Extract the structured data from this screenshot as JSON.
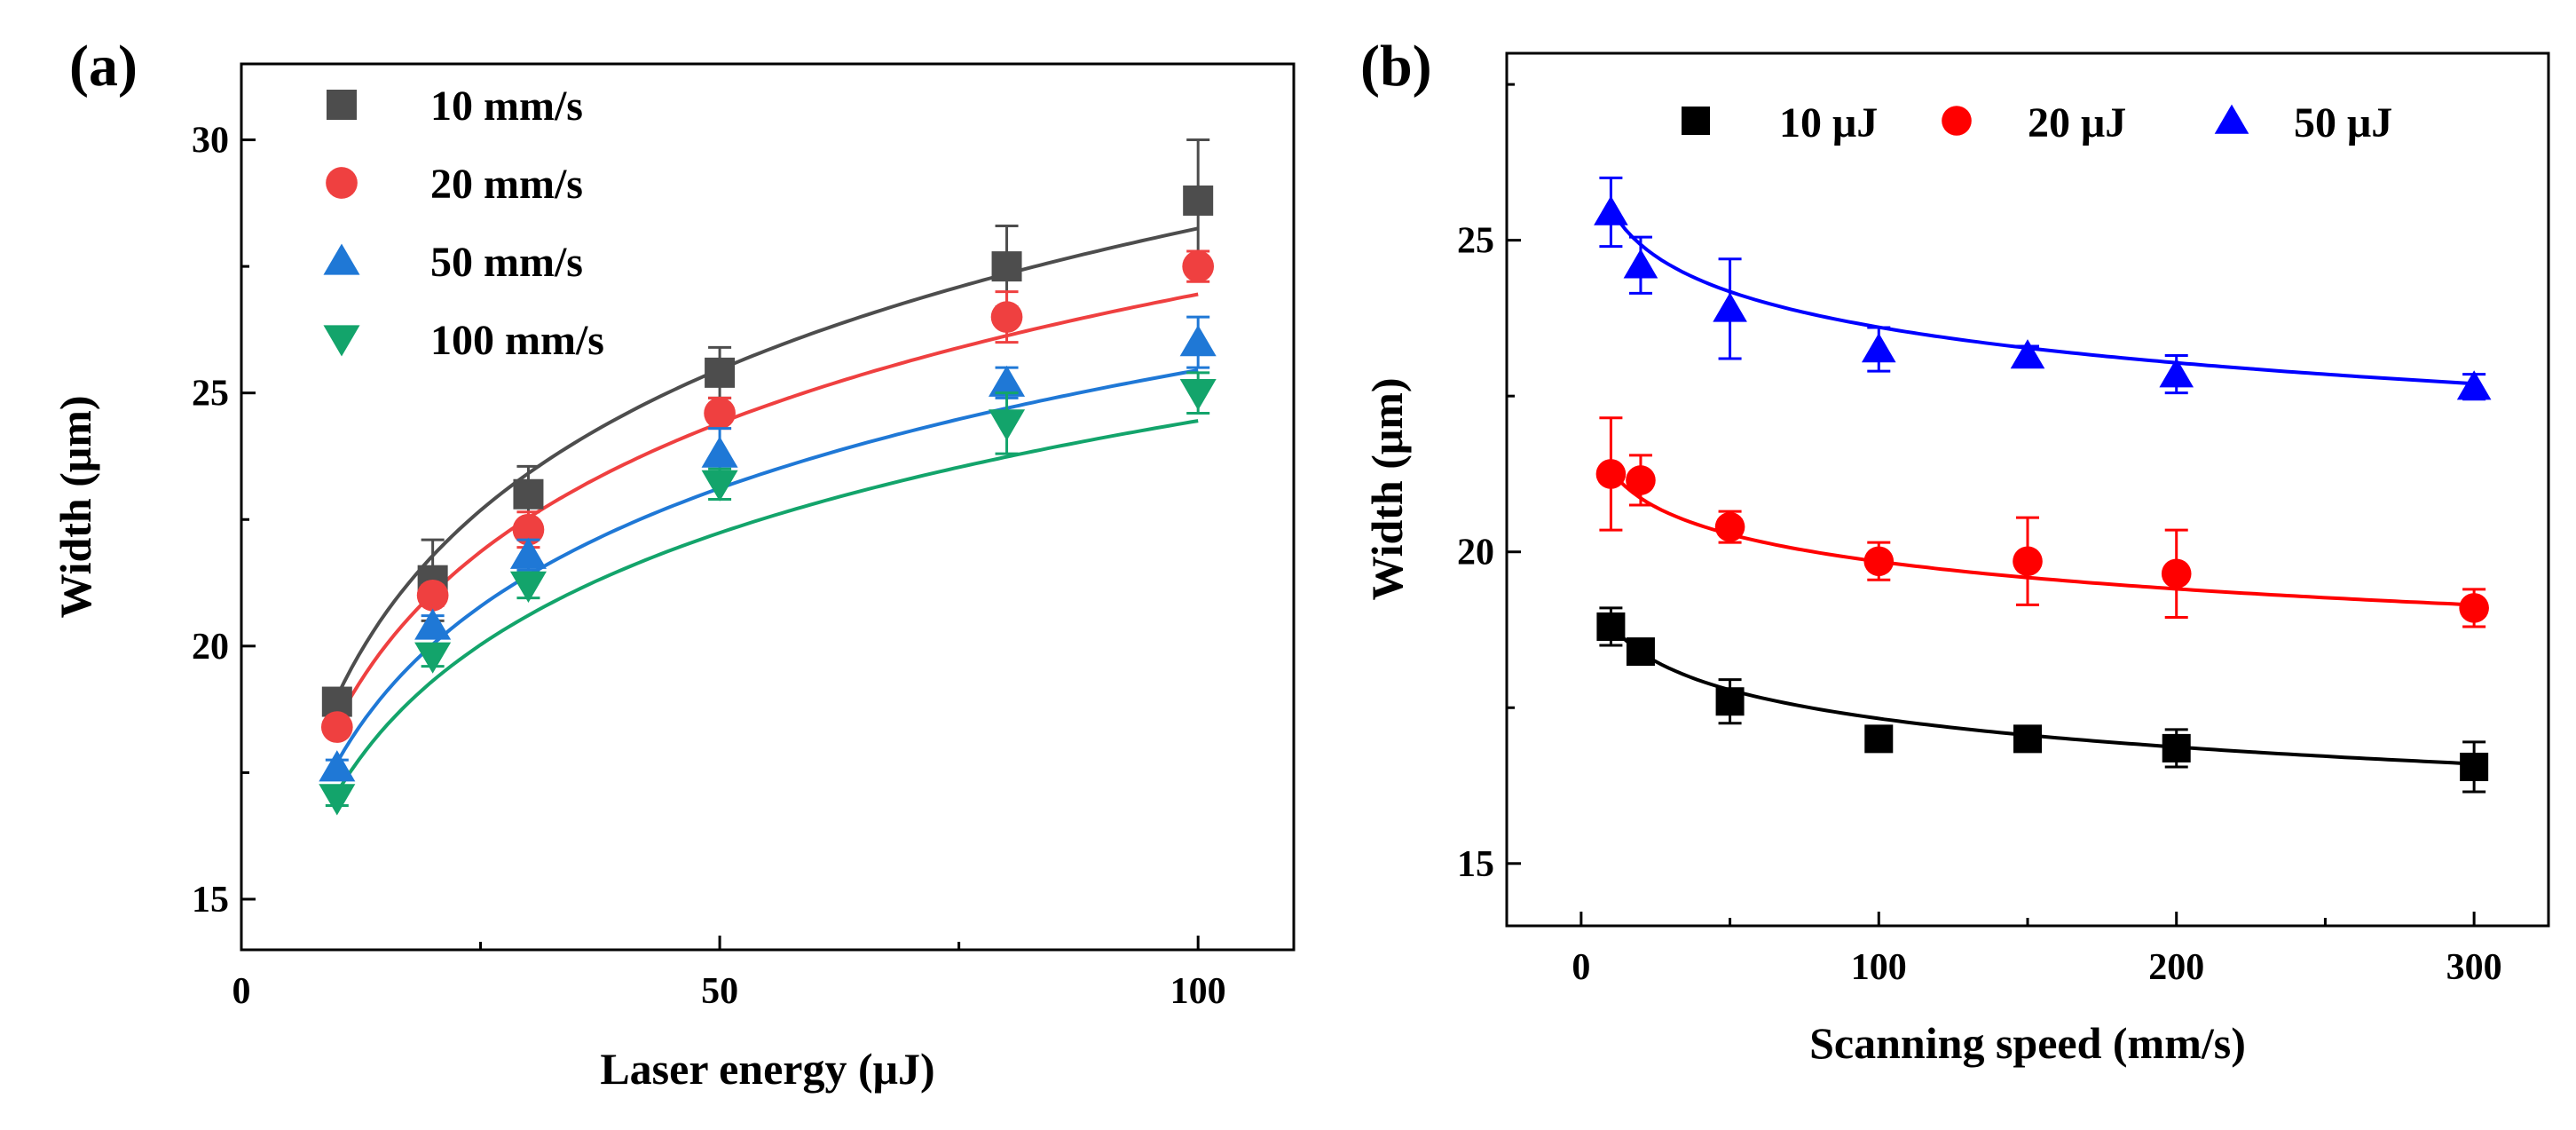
{
  "chart_data": [
    {
      "type": "scatter",
      "panel_label": "(a)",
      "xlabel": "Laser energy (μJ)",
      "ylabel": "Width (μm)",
      "xlim": [
        0,
        110
      ],
      "ylim": [
        14,
        31.5
      ],
      "xticks": [
        0,
        50,
        100
      ],
      "yticks": [
        15,
        20,
        25,
        30
      ],
      "fit_lines": true,
      "legend_position": "top-left",
      "series": [
        {
          "name": "10 mm/s",
          "marker": "square",
          "color": "#4d4d4d",
          "x": [
            10,
            20,
            30,
            50,
            80,
            100
          ],
          "y": [
            18.9,
            21.3,
            23.0,
            25.4,
            27.5,
            28.8
          ],
          "err": [
            0.15,
            0.8,
            0.55,
            0.5,
            0.8,
            1.2
          ],
          "fit": {
            "a": 12.63,
            "b": 7.8
          }
        },
        {
          "name": "20 mm/s",
          "marker": "circle",
          "color": "#ef4040",
          "x": [
            10,
            20,
            30,
            50,
            80,
            100
          ],
          "y": [
            18.4,
            21.0,
            22.3,
            24.6,
            26.5,
            27.5
          ],
          "err": [
            0.15,
            0.2,
            0.35,
            0.3,
            0.5,
            0.3
          ],
          "fit": {
            "a": 12.68,
            "b": 7.2
          }
        },
        {
          "name": "50 mm/s",
          "marker": "triangle-up",
          "color": "#1f78d6",
          "x": [
            10,
            20,
            30,
            50,
            80,
            100
          ],
          "y": [
            17.6,
            20.4,
            21.8,
            23.8,
            25.2,
            26.0
          ],
          "err": [
            0.15,
            0.2,
            0.3,
            0.5,
            0.3,
            0.5
          ],
          "fit": {
            "a": 12.09,
            "b": 6.1
          }
        },
        {
          "name": "100 mm/s",
          "marker": "triangle-down",
          "color": "#13a46b",
          "x": [
            10,
            20,
            30,
            50,
            80,
            100
          ],
          "y": [
            17.0,
            19.8,
            21.2,
            23.2,
            24.4,
            25.0
          ],
          "err": [
            0.15,
            0.2,
            0.25,
            0.3,
            0.6,
            0.4
          ],
          "fit": {
            "a": 11.44,
            "b": 5.9
          }
        }
      ]
    },
    {
      "type": "scatter",
      "panel_label": "(b)",
      "xlabel": "Scanning speed (mm/s)",
      "ylabel": "Width (μm)",
      "xlim": [
        -25,
        325
      ],
      "ylim": [
        14,
        28
      ],
      "xticks": [
        0,
        100,
        200,
        300
      ],
      "yticks": [
        15,
        20,
        25
      ],
      "fit_lines": true,
      "legend_position": "top",
      "series": [
        {
          "name": "10 μJ",
          "marker": "square",
          "color": "#000000",
          "x": [
            10,
            20,
            50,
            100,
            150,
            200,
            300
          ],
          "y": [
            18.8,
            18.4,
            17.6,
            17.0,
            17.0,
            16.85,
            16.55
          ],
          "err": [
            0.3,
            0.1,
            0.35,
            0.15,
            0.15,
            0.3,
            0.4
          ],
          "fit": {
            "a": 19.72,
            "b": -0.555
          }
        },
        {
          "name": "20 μJ",
          "marker": "circle",
          "color": "#ff0000",
          "x": [
            10,
            20,
            50,
            100,
            150,
            200,
            300
          ],
          "y": [
            21.25,
            21.15,
            20.4,
            19.85,
            19.85,
            19.65,
            19.1
          ],
          "err": [
            0.9,
            0.4,
            0.25,
            0.3,
            0.7,
            0.7,
            0.3
          ],
          "fit": {
            "a": 22.37,
            "b": -0.573
          }
        },
        {
          "name": "50 μJ",
          "marker": "triangle-up",
          "color": "#0000ff",
          "x": [
            10,
            20,
            50,
            100,
            150,
            200,
            300
          ],
          "y": [
            25.45,
            24.6,
            23.9,
            23.25,
            23.15,
            22.85,
            22.65
          ],
          "err": [
            0.55,
            0.45,
            0.8,
            0.35,
            0.15,
            0.3,
            0.2
          ],
          "fit": {
            "a": 26.5,
            "b": -0.674
          }
        }
      ]
    }
  ]
}
